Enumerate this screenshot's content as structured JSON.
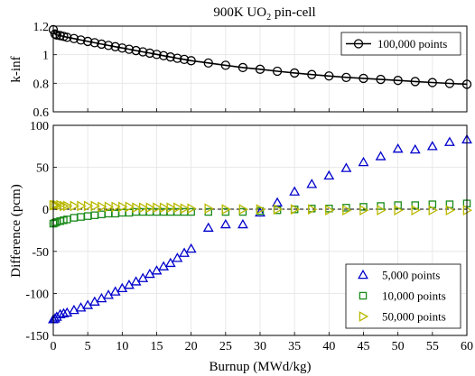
{
  "figure": {
    "title_main": "900K UO",
    "title_sub": "2",
    "title_tail": " pin-cell"
  },
  "chart_data": [
    {
      "type": "line",
      "title": "900K UO2 pin-cell",
      "xlabel": "",
      "ylabel": "k-inf",
      "xlim": [
        0,
        60
      ],
      "ylim": [
        0.6,
        1.2
      ],
      "yticks": [
        "0.6",
        "0.8",
        "1",
        "1.2"
      ],
      "grid": true,
      "legend_position": "top-right",
      "series": [
        {
          "name": "100,000 points",
          "color": "#000000",
          "marker": "circle",
          "x": [
            0,
            0.25,
            0.5,
            1,
            1.5,
            2,
            3,
            4,
            5,
            6,
            7,
            8,
            9,
            10,
            11,
            12,
            13,
            14,
            15,
            16,
            17,
            18,
            19,
            20,
            22.5,
            25,
            27.5,
            30,
            32.5,
            35,
            37.5,
            40,
            42.5,
            45,
            47.5,
            50,
            52.5,
            55,
            57.5,
            60
          ],
          "y": [
            1.175,
            1.145,
            1.138,
            1.134,
            1.128,
            1.122,
            1.113,
            1.103,
            1.093,
            1.084,
            1.074,
            1.065,
            1.056,
            1.047,
            1.038,
            1.029,
            1.02,
            1.011,
            1.002,
            0.993,
            0.984,
            0.975,
            0.967,
            0.958,
            0.942,
            0.926,
            0.91,
            0.898,
            0.884,
            0.872,
            0.861,
            0.851,
            0.841,
            0.834,
            0.827,
            0.82,
            0.812,
            0.805,
            0.799,
            0.793
          ]
        }
      ]
    },
    {
      "type": "scatter",
      "xlabel": "Burnup (MWd/kg)",
      "ylabel": "Difference (pcm)",
      "xlim": [
        0,
        60
      ],
      "ylim": [
        -150,
        100
      ],
      "xticks": [
        "0",
        "5",
        "10",
        "15",
        "20",
        "25",
        "30",
        "35",
        "40",
        "45",
        "50",
        "55",
        "60"
      ],
      "yticks": [
        "-150",
        "-100",
        "-50",
        "0",
        "50",
        "100"
      ],
      "grid": true,
      "zero_line": "dashed",
      "legend_position": "bottom-right",
      "series": [
        {
          "name": "5,000 points",
          "color": "#0000cc",
          "marker": "triangle-up",
          "x": [
            0,
            0.25,
            0.5,
            1,
            1.5,
            2,
            3,
            4,
            5,
            6,
            7,
            8,
            9,
            10,
            11,
            12,
            13,
            14,
            15,
            16,
            17,
            18,
            19,
            20,
            22.5,
            25,
            27.5,
            30,
            32.5,
            35,
            37.5,
            40,
            42.5,
            45,
            47.5,
            50,
            52.5,
            55,
            57.5,
            60
          ],
          "y": [
            -131,
            -130,
            -128,
            -125,
            -124,
            -123,
            -120,
            -117,
            -114,
            -110,
            -106,
            -102,
            -98,
            -94,
            -90,
            -86,
            -82,
            -77,
            -73,
            -68,
            -64,
            -58,
            -52,
            -47,
            -22,
            -18,
            -18,
            -4,
            8,
            21,
            30,
            40,
            49,
            56,
            63,
            72,
            71,
            75,
            80,
            83
          ]
        },
        {
          "name": "10,000 points",
          "color": "#1a8a1a",
          "marker": "square",
          "x": [
            0,
            0.25,
            0.5,
            1,
            1.5,
            2,
            3,
            4,
            5,
            6,
            7,
            8,
            9,
            10,
            11,
            12,
            13,
            14,
            15,
            16,
            17,
            18,
            19,
            20,
            22.5,
            25,
            27.5,
            30,
            32.5,
            35,
            37.5,
            40,
            42.5,
            45,
            47.5,
            50,
            52.5,
            55,
            57.5,
            60
          ],
          "y": [
            -17,
            -16,
            -15,
            -14,
            -13,
            -12,
            -10,
            -9,
            -8,
            -7,
            -6,
            -5,
            -5,
            -4,
            -4,
            -3,
            -3,
            -3,
            -3,
            -3,
            -3,
            -3,
            -3,
            -3,
            -3,
            -3,
            -3,
            -2,
            -1,
            0,
            1,
            1,
            2,
            3,
            4,
            5,
            5,
            6,
            6,
            7
          ]
        },
        {
          "name": "50,000 points",
          "color": "#b8b800",
          "marker": "triangle-right",
          "x": [
            0,
            0.25,
            0.5,
            1,
            1.5,
            2,
            3,
            4,
            5,
            6,
            7,
            8,
            9,
            10,
            11,
            12,
            13,
            14,
            15,
            16,
            17,
            18,
            19,
            20,
            22.5,
            25,
            27.5,
            30,
            32.5,
            35,
            37.5,
            40,
            42.5,
            45,
            47.5,
            50,
            52.5,
            55,
            57.5,
            60
          ],
          "y": [
            5,
            5,
            5,
            5,
            4,
            4,
            4,
            4,
            4,
            4,
            3,
            3,
            3,
            3,
            3,
            2,
            2,
            2,
            2,
            2,
            2,
            2,
            1,
            1,
            1,
            0,
            0,
            0,
            0,
            0,
            0,
            -1,
            -1,
            -1,
            -1,
            -1,
            -1,
            -1,
            -1,
            -1
          ]
        }
      ]
    }
  ]
}
